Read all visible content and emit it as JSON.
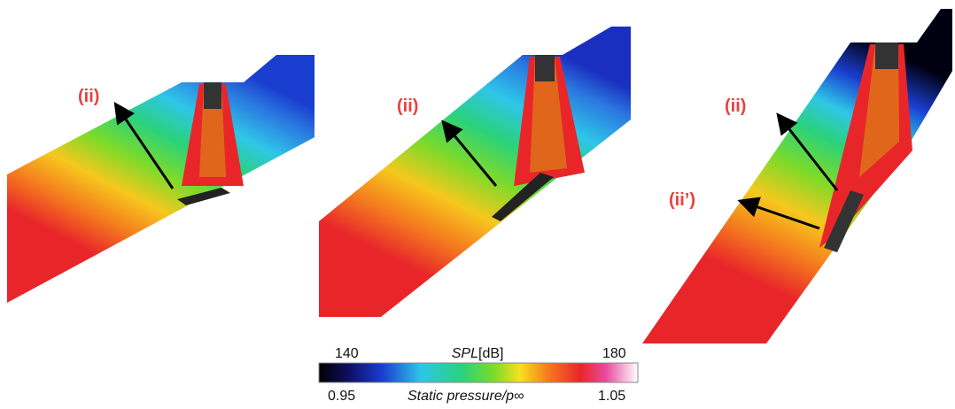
{
  "panels": [
    {
      "labels": [
        "(ii)"
      ]
    },
    {
      "labels": [
        "(ii)"
      ]
    },
    {
      "labels": [
        "(ii)",
        "(ii’)"
      ]
    }
  ],
  "colorbar": {
    "top": {
      "min": "140",
      "symbol": "SPL",
      "unit": "[dB]",
      "max": "180"
    },
    "bottom": {
      "min": "0.95",
      "title": "Static pressure/p∞",
      "max": "1.05"
    }
  }
}
